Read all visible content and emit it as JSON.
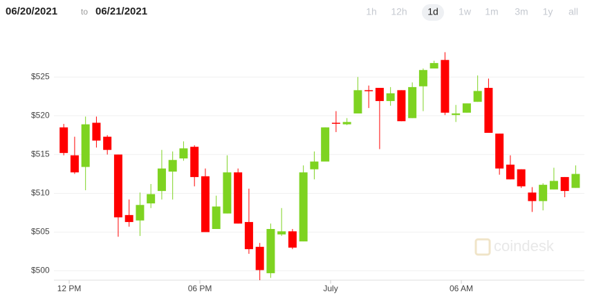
{
  "header": {
    "from": "06/20/2021",
    "separator": "to",
    "to": "06/21/2021",
    "range_buttons": [
      "1h",
      "12h",
      "1d",
      "1w",
      "1m",
      "3m",
      "1y",
      "all"
    ],
    "selected_range_index": 2
  },
  "watermark": "coindesk",
  "chart_data": {
    "type": "candlestick",
    "x": [
      -0.25,
      0.25,
      0.75,
      1.25,
      1.75,
      2.25,
      2.75,
      3.25,
      3.75,
      4.25,
      4.75,
      5.25,
      5.75,
      6.25,
      6.75,
      7.25,
      7.75,
      8.25,
      8.75,
      9.25,
      9.75,
      10.25,
      10.75,
      11.25,
      11.75,
      12.25,
      12.75,
      13.25,
      13.75,
      14.25,
      14.75,
      15.25,
      15.75,
      16.25,
      16.75,
      17.25,
      17.75,
      18.25,
      18.75,
      19.25,
      19.75,
      20.25,
      20.75,
      21.25,
      21.75,
      22.25,
      22.75,
      23.25
    ],
    "series": [
      {
        "open": [
          518.5,
          514.9,
          513.4,
          519.1,
          517.3,
          515.0,
          507.2,
          506.5,
          508.7,
          510.3,
          512.8,
          514.5,
          516.0,
          512.2,
          505.4,
          507.4,
          512.7,
          506.3,
          503.1,
          499.7,
          504.7,
          505.1,
          503.8,
          513.1,
          514.1,
          519.1,
          518.9,
          520.3,
          523.3,
          523.6,
          521.9,
          523.3,
          519.7,
          523.8,
          526.1,
          527.2,
          520.1,
          520.4,
          521.8,
          523.6,
          517.7,
          513.7,
          513.1,
          510.1,
          509.0,
          510.5,
          512.1,
          510.7
        ],
        "high": [
          518.95,
          517.3,
          519.9,
          519.9,
          517.5,
          515.0,
          509.2,
          510.1,
          511.2,
          515.6,
          515.4,
          516.7,
          516.2,
          513.2,
          509.7,
          514.9,
          513.2,
          510.6,
          503.6,
          506.1,
          508.1,
          505.4,
          513.6,
          515.4,
          518.5,
          520.6,
          519.7,
          525.0,
          523.9,
          523.6,
          523.7,
          523.3,
          524.3,
          526.1,
          527.1,
          528.2,
          521.4,
          521.6,
          525.2,
          524.8,
          517.7,
          514.9,
          513.1,
          510.8,
          511.3,
          513.3,
          512.1,
          513.6
        ],
        "low": [
          514.9,
          512.5,
          510.4,
          515.9,
          515.0,
          504.4,
          505.7,
          504.5,
          508.1,
          509.2,
          509.2,
          514.2,
          510.9,
          505.0,
          505.4,
          507.4,
          506.1,
          502.2,
          498.8,
          499.1,
          504.5,
          502.8,
          503.8,
          511.8,
          514.1,
          517.9,
          518.8,
          520.3,
          521.0,
          515.7,
          521.3,
          519.3,
          519.7,
          520.6,
          526.1,
          520.1,
          519.2,
          520.4,
          521.8,
          517.8,
          512.4,
          511.8,
          510.7,
          507.6,
          507.8,
          510.5,
          509.5,
          510.7
        ],
        "close": [
          515.2,
          512.7,
          518.9,
          516.8,
          515.6,
          506.9,
          506.3,
          508.5,
          509.9,
          513.2,
          514.3,
          515.8,
          512.1,
          505.0,
          508.3,
          512.7,
          506.1,
          502.8,
          500.1,
          505.4,
          505.1,
          503.0,
          512.7,
          514.1,
          518.5,
          519.0,
          519.2,
          523.3,
          523.2,
          521.9,
          522.9,
          519.3,
          523.7,
          525.9,
          526.8,
          520.4,
          520.3,
          521.6,
          523.2,
          517.8,
          513.2,
          511.8,
          510.9,
          509.0,
          511.1,
          511.6,
          510.3,
          512.5
        ]
      }
    ],
    "up_color": "#7ed321",
    "down_color": "#ff0000",
    "xlim": [
      -0.7,
      23.65
    ],
    "xticks": [
      {
        "value": 0,
        "label": "12 PM"
      },
      {
        "value": 6,
        "label": "06 PM"
      },
      {
        "value": 12,
        "label": "July"
      },
      {
        "value": 18,
        "label": "06 AM"
      }
    ],
    "ylim": [
      498.8,
      529.4
    ],
    "yticks": [
      {
        "value": 500,
        "label": "$500"
      },
      {
        "value": 505,
        "label": "$505"
      },
      {
        "value": 510,
        "label": "$510"
      },
      {
        "value": 515,
        "label": "$515"
      },
      {
        "value": 520,
        "label": "$520"
      },
      {
        "value": 525,
        "label": "$525"
      }
    ],
    "grid": true
  }
}
